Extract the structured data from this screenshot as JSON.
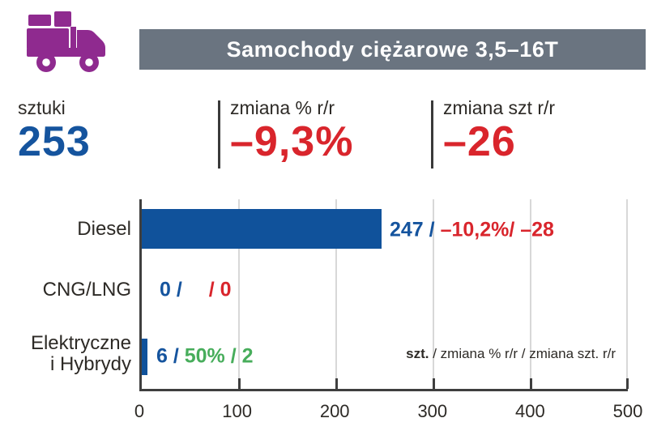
{
  "header": {
    "title": "Samochody ciężarowe 3,5–16T",
    "band_color": "#6A7480"
  },
  "icon": {
    "name": "truck-icon",
    "color": "#8F2A8F"
  },
  "stats": {
    "units": {
      "label": "sztuki",
      "value": "253",
      "value_color": "#15549E"
    },
    "pct": {
      "label": "zmiana % r/r",
      "value": "–9,3%",
      "value_color": "#D9252C"
    },
    "delta": {
      "label": "zmiana szt r/r",
      "value": "–26",
      "value_color": "#D9252C"
    }
  },
  "chart_data": {
    "type": "bar",
    "orientation": "horizontal",
    "title": "Samochody ciężarowe 3,5–16T",
    "categories": [
      "Diesel",
      "CNG/LNG",
      "Elektryczne i Hybrydy"
    ],
    "values": [
      247,
      0,
      6
    ],
    "xlim": [
      0,
      500
    ],
    "xticks": [
      "0",
      "100",
      "200",
      "300",
      "400",
      "500"
    ],
    "grid": true,
    "bar_color": "#10529B",
    "label_lines": [
      [
        "Diesel",
        ""
      ],
      [
        "CNG/LNG",
        ""
      ],
      [
        "Elektryczne",
        "i Hybrydy"
      ]
    ],
    "annotations": [
      {
        "units": 247,
        "pct_change": "–10,2%",
        "unit_change": -28,
        "value_text": "247 /",
        "change_text": "–10,2%/ –28",
        "change_color": "#D9252C"
      },
      {
        "units": 0,
        "pct_change": null,
        "unit_change": 0,
        "value_text": "0 /",
        "change_text": "/ 0",
        "change_color": "#D9252C"
      },
      {
        "units": 6,
        "pct_change": "50%",
        "unit_change": 2,
        "value_text": "6 /",
        "change_text": "50% / 2",
        "change_color": "#47AD5B"
      }
    ],
    "legend": {
      "bold": "szt.",
      "rest": " / zmiana % r/r / zmiana szt. r/r"
    }
  },
  "colors": {
    "blue": "#15549E",
    "red": "#D9252C",
    "green": "#47AD5B",
    "purple": "#8F2A8F",
    "band_gray": "#6A7480",
    "grid_gray": "#D8D8D8",
    "axis_dark": "#3F3F3F"
  }
}
